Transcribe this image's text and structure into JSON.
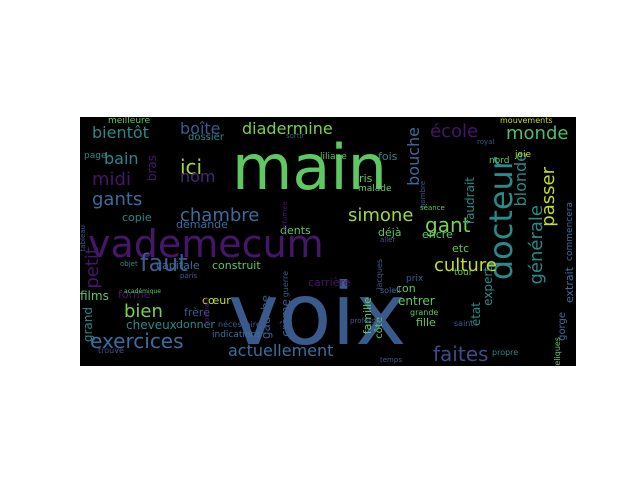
{
  "chart_data": {
    "type": "wordcloud",
    "background": "#000000",
    "colormap": "viridis",
    "words": [
      {
        "text": "voix",
        "color": "#3b5a8c"
      },
      {
        "text": "main",
        "color": "#5ec962"
      },
      {
        "text": "vademecum",
        "color": "#46166b"
      },
      {
        "text": "docteur",
        "color": "#2a8a8a"
      },
      {
        "text": "faites",
        "color": "#3f4a8a"
      },
      {
        "text": "exercices",
        "color": "#3b6ea0"
      },
      {
        "text": "actuellement",
        "color": "#3b6ea0"
      },
      {
        "text": "gants",
        "color": "#3b6ea0"
      },
      {
        "text": "faut",
        "color": "#3b5a8c"
      },
      {
        "text": "gant",
        "color": "#7ad151"
      },
      {
        "text": "simone",
        "color": "#a0da39"
      },
      {
        "text": "chambre",
        "color": "#3b6ea0"
      },
      {
        "text": "diadermine",
        "color": "#7ad151"
      },
      {
        "text": "école",
        "color": "#46166b"
      },
      {
        "text": "monde",
        "color": "#4ac16d"
      },
      {
        "text": "bientôt",
        "color": "#2a8a8a"
      },
      {
        "text": "midi",
        "color": "#46166b"
      },
      {
        "text": "ici",
        "color": "#a0da39"
      },
      {
        "text": "bain",
        "color": "#2a8a8a"
      },
      {
        "text": "boîte",
        "color": "#3b5a8c"
      },
      {
        "text": "nom",
        "color": "#482878"
      },
      {
        "text": "bras",
        "color": "#46166b"
      },
      {
        "text": "culture",
        "color": "#c0df25"
      },
      {
        "text": "bouche",
        "color": "#3b6ea0"
      },
      {
        "text": "blonde",
        "color": "#2a8a8a"
      },
      {
        "text": "passer",
        "color": "#c0df25"
      },
      {
        "text": "générale",
        "color": "#2a8a8a"
      },
      {
        "text": "bien",
        "color": "#7ad151"
      },
      {
        "text": "petit",
        "color": "#46166b"
      },
      {
        "text": "cheveux",
        "color": "#2a8a8a"
      },
      {
        "text": "films",
        "color": "#5ec962"
      },
      {
        "text": "grand",
        "color": "#2a8a8a"
      },
      {
        "text": "donner",
        "color": "#2a8a8a"
      },
      {
        "text": "frère",
        "color": "#3b5a8c"
      },
      {
        "text": "cœur",
        "color": "#c0df25"
      },
      {
        "text": "capitale",
        "color": "#3b6ea0"
      },
      {
        "text": "construit",
        "color": "#5ec962"
      },
      {
        "text": "carrière",
        "color": "#46166b"
      },
      {
        "text": "dents",
        "color": "#5ec962"
      },
      {
        "text": "demande",
        "color": "#3b6ea0"
      },
      {
        "text": "copie",
        "color": "#2a8a8a"
      },
      {
        "text": "forme",
        "color": "#46166b"
      },
      {
        "text": "gauche",
        "color": "#3b5a8c"
      },
      {
        "text": "crème",
        "color": "#3b5a8c"
      },
      {
        "text": "famille",
        "color": "#5ec962"
      },
      {
        "text": "côté",
        "color": "#5ec962"
      },
      {
        "text": "fille",
        "color": "#5ec962"
      },
      {
        "text": "entrer",
        "color": "#5ec962"
      },
      {
        "text": "encre",
        "color": "#5ec962"
      },
      {
        "text": "déjà",
        "color": "#5ec962"
      },
      {
        "text": "etc",
        "color": "#5ec962"
      },
      {
        "text": "con",
        "color": "#5ec962"
      },
      {
        "text": "faudrait",
        "color": "#2a8a8a"
      },
      {
        "text": "expert",
        "color": "#2a8a8a"
      },
      {
        "text": "état",
        "color": "#2a8a8a"
      },
      {
        "text": "extrait",
        "color": "#3b6ea0"
      },
      {
        "text": "gorge",
        "color": "#3b6ea0"
      },
      {
        "text": "cris",
        "color": "#5ec962"
      },
      {
        "text": "malade",
        "color": "#5ec962"
      },
      {
        "text": "liliane",
        "color": "#5ec962"
      },
      {
        "text": "fois",
        "color": "#2a8a8a"
      },
      {
        "text": "dossier",
        "color": "#2a8a8a"
      },
      {
        "text": "meilleure",
        "color": "#5ec962"
      },
      {
        "text": "joie",
        "color": "#c0df25"
      },
      {
        "text": "nord",
        "color": "#5ec962"
      },
      {
        "text": "commencera",
        "color": "#3b6ea0"
      },
      {
        "text": "mouvements",
        "color": "#c0df25"
      },
      {
        "text": "reliques",
        "color": "#5ec962"
      },
      {
        "text": "indications",
        "color": "#3b6ea0"
      },
      {
        "text": "nécessaire",
        "color": "#3b5a8c"
      },
      {
        "text": "grande",
        "color": "#5ec962"
      },
      {
        "text": "page",
        "color": "#2a8a8a"
      },
      {
        "text": "prix",
        "color": "#3b5a8c"
      },
      {
        "text": "tour",
        "color": "#5ec962"
      },
      {
        "text": "saint",
        "color": "#3b5a8c"
      },
      {
        "text": "soleil",
        "color": "#3b6ea0"
      },
      {
        "text": "profession",
        "color": "#3b5a8c"
      },
      {
        "text": "trouvé",
        "color": "#3b5a8c"
      },
      {
        "text": "propre",
        "color": "#2a8a8a"
      },
      {
        "text": "royal",
        "color": "#3b5a8c"
      },
      {
        "text": "temps",
        "color": "#3b5a8c"
      },
      {
        "text": "parfumée",
        "color": "#46166b"
      },
      {
        "text": "guerre",
        "color": "#3b5a8c"
      },
      {
        "text": "sortir",
        "color": "#3b5a8c"
      },
      {
        "text": "nombre",
        "color": "#3b5a8c"
      },
      {
        "text": "séance",
        "color": "#5ec962"
      },
      {
        "text": "jacques",
        "color": "#3b5a8c"
      },
      {
        "text": "paris",
        "color": "#3b5a8c"
      },
      {
        "text": "objet",
        "color": "#2a8a8a"
      },
      {
        "text": "spéciale",
        "color": "#46166b"
      },
      {
        "text": "tableau",
        "color": "#3b5a8c"
      },
      {
        "text": "académique",
        "color": "#5ec962"
      },
      {
        "text": "aller",
        "color": "#3b5a8c"
      }
    ]
  }
}
